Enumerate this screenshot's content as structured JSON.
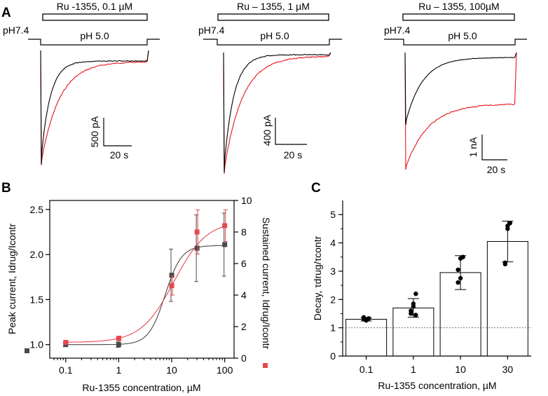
{
  "panel_a": {
    "letter": "A",
    "colors": {
      "control": "#000000",
      "drug": "#e8141b"
    },
    "traces": [
      {
        "drug_label": "Ru -1355, 0.1 µM",
        "ph_before": "pH7.4",
        "ph_after": "pH 5.0",
        "scale_y": "500 pA",
        "scale_x": "20 s"
      },
      {
        "drug_label": "Ru – 1355, 1 µM",
        "ph_before": "pH7.4",
        "ph_after": "pH 5.0",
        "scale_y": "400 pA",
        "scale_x": "20 s"
      },
      {
        "drug_label": "Ru – 1355, 100µM",
        "ph_before": "pH7.4",
        "ph_after": "pH 5.0",
        "scale_y": "1 nA",
        "scale_x": "20 s"
      }
    ]
  },
  "chart_data": [
    {
      "panel": "B",
      "type": "scatter",
      "xscale": "log",
      "xlabel": "Ru-1355 concentration, µM",
      "ylabel": "Peak current, Idrug/Icontr",
      "y2label": "Sustained current, Idrug/Icontr",
      "xlim": [
        0.05,
        150
      ],
      "ylim": [
        0.85,
        2.6
      ],
      "y2lim": [
        0,
        10
      ],
      "xticks": [
        0.1,
        1,
        10,
        100
      ],
      "xtick_labels": [
        "0.1",
        "1",
        "10",
        "100"
      ],
      "yticks": [
        1.0,
        1.5,
        2.0,
        2.5
      ],
      "ytick_labels": [
        "1.0",
        "1.5",
        "2.0",
        "2.5"
      ],
      "y2ticks": [
        0,
        2,
        4,
        6,
        8,
        10
      ],
      "y2tick_labels": [
        "0",
        "2",
        "4",
        "6",
        "8",
        "10"
      ],
      "series": [
        {
          "name": "Peak current",
          "axis": "left",
          "color": "#4a4a4a",
          "x": [
            0.1,
            1,
            10,
            30,
            100
          ],
          "y": [
            1.0,
            1.0,
            1.77,
            2.07,
            2.11
          ],
          "err": [
            0.02,
            0.03,
            0.29,
            0.37,
            0.35
          ],
          "fit": {
            "bottom": 1.0,
            "top": 2.1,
            "ec50": 7.5,
            "hill": 2.8
          }
        },
        {
          "name": "Sustained current",
          "axis": "right",
          "color": "#e8464d",
          "x": [
            0.1,
            1,
            10,
            30,
            100
          ],
          "y": [
            1.0,
            1.25,
            4.6,
            8.0,
            8.4
          ],
          "err": [
            0.1,
            0.15,
            0.6,
            1.4,
            1.0
          ],
          "fit": {
            "bottom": 1.0,
            "top": 8.7,
            "ec50": 11,
            "hill": 1.4
          }
        }
      ]
    },
    {
      "panel": "C",
      "type": "bar",
      "xlabel": "Ru-1355 concentration, µM",
      "ylabel": "Decay, τdrug/τcontr",
      "categories": [
        "0.1",
        "1",
        "10",
        "30"
      ],
      "values": [
        1.3,
        1.7,
        2.95,
        4.05
      ],
      "err": [
        0.06,
        0.33,
        0.6,
        0.72
      ],
      "points": [
        [
          1.3,
          1.26,
          1.33,
          1.37,
          1.29
        ],
        [
          1.5,
          1.85,
          2.2,
          1.6,
          1.75,
          1.45
        ],
        [
          3.05,
          2.75,
          3.5,
          2.6,
          3.45
        ],
        [
          3.3,
          4.6,
          4.7,
          3.25,
          4.5
        ]
      ],
      "ylim": [
        0,
        5.5
      ],
      "yticks": [
        0,
        1,
        2,
        3,
        4,
        5
      ],
      "ytick_labels": [
        "0",
        "1",
        "2",
        "3",
        "4",
        "5"
      ],
      "reference_line": 1.0
    }
  ]
}
